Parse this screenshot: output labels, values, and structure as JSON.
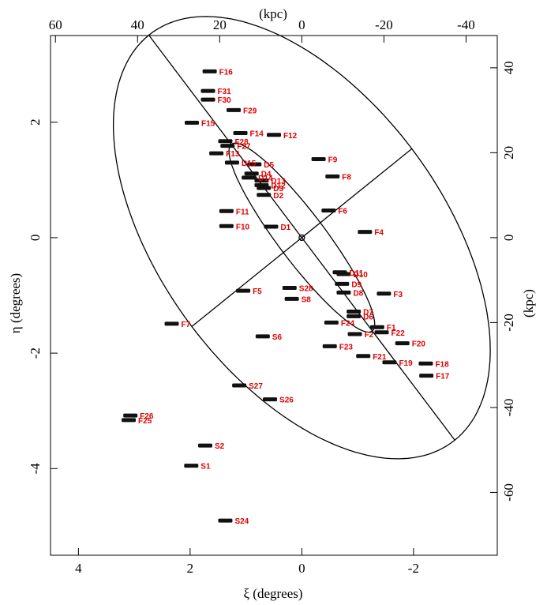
{
  "chart_data": {
    "type": "scatter",
    "xlabel": "ξ (degrees)",
    "ylabel": "η (degrees)",
    "x2label": "(kpc)",
    "y2label": "(kpc)",
    "xlim": [
      4.5,
      -3.5
    ],
    "ylim": [
      -5.5,
      3.5
    ],
    "x_ticks": [
      4,
      2,
      0,
      -2
    ],
    "y_ticks": [
      -4,
      -2,
      0,
      2
    ],
    "x2_ticks": [
      60,
      40,
      20,
      0,
      -20,
      -40
    ],
    "y2_ticks": [
      40,
      20,
      0,
      -20,
      -40,
      -60
    ],
    "kpc_per_degree": 13.6,
    "center_marker": [
      0,
      0
    ],
    "inner_ellipse": {
      "center": [
        0,
        0
      ],
      "semi_major_deg": 2.05,
      "semi_minor_deg": 0.42,
      "pa_deg": 38
    },
    "outer_ellipse": {
      "center": [
        0,
        0
      ],
      "semi_major_deg": 4.45,
      "semi_minor_deg": 2.5,
      "pa_deg": 38
    },
    "grid": false,
    "series": [
      {
        "fields": [
          {
            "label": "F16",
            "x": 1.65,
            "y": 2.88
          },
          {
            "label": "F31",
            "x": 1.68,
            "y": 2.54
          },
          {
            "label": "F30",
            "x": 1.68,
            "y": 2.39
          },
          {
            "label": "F29",
            "x": 1.22,
            "y": 2.21
          },
          {
            "label": "F15",
            "x": 1.97,
            "y": 1.99
          },
          {
            "label": "F14",
            "x": 1.1,
            "y": 1.81
          },
          {
            "label": "F12",
            "x": 0.5,
            "y": 1.78
          },
          {
            "label": "F28",
            "x": 1.37,
            "y": 1.67
          },
          {
            "label": "F27",
            "x": 1.33,
            "y": 1.59
          },
          {
            "label": "F13",
            "x": 1.53,
            "y": 1.46
          },
          {
            "label": "F9",
            "x": -0.3,
            "y": 1.36
          },
          {
            "label": "D15",
            "x": 1.25,
            "y": 1.3
          },
          {
            "label": "D5",
            "x": 0.85,
            "y": 1.27
          },
          {
            "label": "D4",
            "x": 0.9,
            "y": 1.11
          },
          {
            "label": "F8",
            "x": -0.55,
            "y": 1.06
          },
          {
            "label": "D14",
            "x": 0.95,
            "y": 1.04
          },
          {
            "label": "D13",
            "x": 0.72,
            "y": 0.99
          },
          {
            "label": "D12",
            "x": 0.72,
            "y": 0.91
          },
          {
            "label": "D3",
            "x": 0.68,
            "y": 0.86
          },
          {
            "label": "D2",
            "x": 0.68,
            "y": 0.74
          },
          {
            "label": "F11",
            "x": 1.35,
            "y": 0.46
          },
          {
            "label": "F6",
            "x": -0.48,
            "y": 0.47
          },
          {
            "label": "F10",
            "x": 1.35,
            "y": 0.2
          },
          {
            "label": "D1",
            "x": 0.55,
            "y": 0.19
          },
          {
            "label": "F4",
            "x": -1.13,
            "y": 0.1
          },
          {
            "label": "D11",
            "x": -0.68,
            "y": -0.6
          },
          {
            "label": "D10",
            "x": -0.75,
            "y": -0.63
          },
          {
            "label": "D9",
            "x": -0.72,
            "y": -0.8
          },
          {
            "label": "F5",
            "x": 1.05,
            "y": -0.92
          },
          {
            "label": "S28",
            "x": 0.22,
            "y": -0.87
          },
          {
            "label": "D8",
            "x": -0.75,
            "y": -0.95
          },
          {
            "label": "F3",
            "x": -1.47,
            "y": -0.97
          },
          {
            "label": "S8",
            "x": 0.18,
            "y": -1.06
          },
          {
            "label": "D7",
            "x": -0.93,
            "y": -1.28
          },
          {
            "label": "D6",
            "x": -0.93,
            "y": -1.36
          },
          {
            "label": "F24",
            "x": -0.53,
            "y": -1.47
          },
          {
            "label": "F7",
            "x": 2.33,
            "y": -1.49
          },
          {
            "label": "F1",
            "x": -1.35,
            "y": -1.55
          },
          {
            "label": "F22",
            "x": -1.43,
            "y": -1.64
          },
          {
            "label": "F2",
            "x": -0.95,
            "y": -1.67
          },
          {
            "label": "S6",
            "x": 0.7,
            "y": -1.71
          },
          {
            "label": "F20",
            "x": -1.8,
            "y": -1.83
          },
          {
            "label": "F23",
            "x": -0.5,
            "y": -1.88
          },
          {
            "label": "F21",
            "x": -1.1,
            "y": -2.05
          },
          {
            "label": "F18",
            "x": -2.22,
            "y": -2.18
          },
          {
            "label": "F19",
            "x": -1.57,
            "y": -2.16
          },
          {
            "label": "F17",
            "x": -2.23,
            "y": -2.39
          },
          {
            "label": "S27",
            "x": 1.12,
            "y": -2.56
          },
          {
            "label": "S26",
            "x": 0.57,
            "y": -2.8
          },
          {
            "label": "F26",
            "x": 3.07,
            "y": -3.08
          },
          {
            "label": "F25",
            "x": 3.1,
            "y": -3.16
          },
          {
            "label": "S2",
            "x": 1.73,
            "y": -3.6
          },
          {
            "label": "S1",
            "x": 1.98,
            "y": -3.95
          },
          {
            "label": "S24",
            "x": 1.37,
            "y": -4.9
          }
        ]
      }
    ]
  }
}
